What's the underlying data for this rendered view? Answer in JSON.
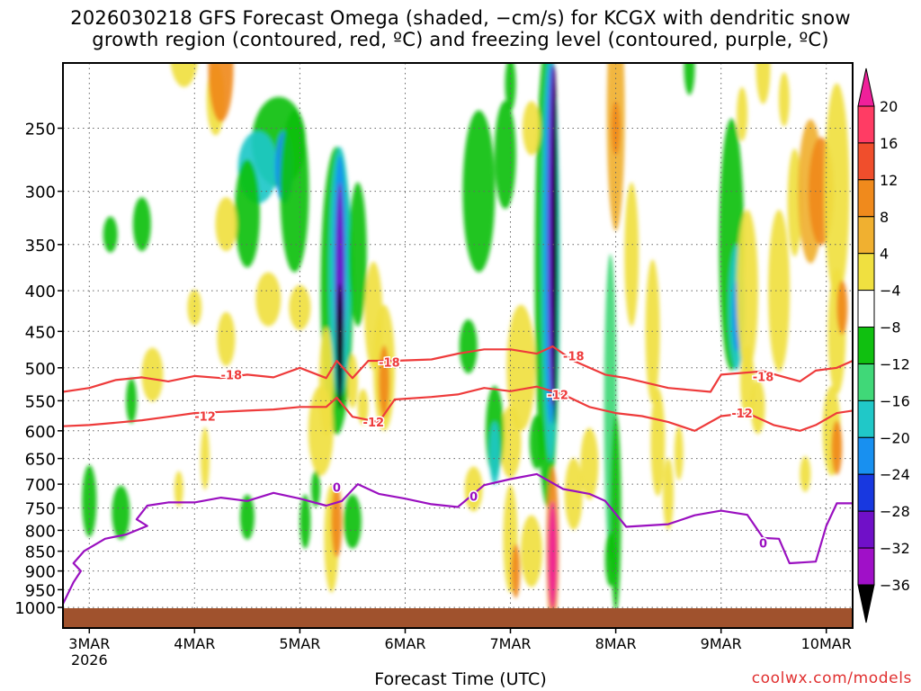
{
  "title": {
    "line1": "2026030218 GFS Forecast Omega (shaded, −cm/s) for KCGX with dendritic snow",
    "line2": "growth region (contoured, red, ºC) and freezing level (contoured, purple, ºC)"
  },
  "credit": "coolwx.com/models",
  "chart_data": {
    "type": "heatmap",
    "title": "2026030218 GFS Forecast Omega (shaded, −cm/s) for KCGX with dendritic snow growth region (contoured, red, ºC) and freezing level (contoured, purple, ºC)",
    "xlabel": "Forecast Time (UTC)",
    "ylabel": "",
    "x_range_days": [
      2.75,
      10.25
    ],
    "y_range_hPa": [
      200,
      1020
    ],
    "y_ticks": [
      250,
      300,
      350,
      400,
      450,
      500,
      550,
      600,
      650,
      700,
      750,
      800,
      850,
      900,
      950,
      1000
    ],
    "x_ticks": [
      {
        "day": 3,
        "label": "3MAR",
        "sub": "2026"
      },
      {
        "day": 4,
        "label": "4MAR"
      },
      {
        "day": 5,
        "label": "5MAR"
      },
      {
        "day": 6,
        "label": "6MAR"
      },
      {
        "day": 7,
        "label": "7MAR"
      },
      {
        "day": 8,
        "label": "8MAR"
      },
      {
        "day": 9,
        "label": "9MAR"
      },
      {
        "day": 10,
        "label": "10MAR"
      }
    ],
    "colorbar": {
      "labels": [
        "20",
        "16",
        "12",
        "8",
        "4",
        "−4",
        "−8",
        "−12",
        "−16",
        "−20",
        "−24",
        "−28",
        "−32",
        "−36"
      ],
      "colors": [
        "#ff3c64",
        "#f04e2c",
        "#f08a1c",
        "#f0b030",
        "#f0e040",
        "#ffffff",
        "#10c010",
        "#40d878",
        "#20c8c8",
        "#1890f0",
        "#1838e0",
        "#7010c8",
        "#a010c8",
        "#a0a0a0"
      ],
      "top_arrow_color": "#f0209a",
      "bottom_arrow_color": "#000000"
    },
    "contours": [
      {
        "name": "dgz-minus-18",
        "label": "-18",
        "color": "#ee3b3b",
        "points": [
          [
            2.75,
            536
          ],
          [
            3.0,
            530
          ],
          [
            3.25,
            518
          ],
          [
            3.5,
            514
          ],
          [
            3.75,
            520
          ],
          [
            4.0,
            512
          ],
          [
            4.25,
            515
          ],
          [
            4.5,
            510
          ],
          [
            4.75,
            514
          ],
          [
            5.0,
            500
          ],
          [
            5.25,
            515
          ],
          [
            5.35,
            490
          ],
          [
            5.5,
            515
          ],
          [
            5.65,
            490
          ],
          [
            5.9,
            490
          ],
          [
            6.25,
            488
          ],
          [
            6.5,
            480
          ],
          [
            6.75,
            474
          ],
          [
            7.0,
            474
          ],
          [
            7.25,
            480
          ],
          [
            7.4,
            470
          ],
          [
            7.6,
            490
          ],
          [
            7.9,
            510
          ],
          [
            8.1,
            515
          ],
          [
            8.5,
            530
          ],
          [
            8.9,
            536
          ],
          [
            9.0,
            510
          ],
          [
            9.4,
            505
          ],
          [
            9.75,
            520
          ],
          [
            9.9,
            504
          ],
          [
            10.1,
            500
          ],
          [
            10.25,
            490
          ]
        ],
        "labels_at": [
          [
            4.35,
            510
          ],
          [
            5.85,
            492
          ],
          [
            7.6,
            483
          ],
          [
            9.4,
            513
          ]
        ]
      },
      {
        "name": "dgz-minus-12",
        "label": "-12",
        "color": "#ee3b3b",
        "points": [
          [
            2.75,
            592
          ],
          [
            3.0,
            590
          ],
          [
            3.25,
            586
          ],
          [
            3.5,
            582
          ],
          [
            3.75,
            576
          ],
          [
            4.0,
            570
          ],
          [
            4.25,
            568
          ],
          [
            4.5,
            566
          ],
          [
            4.75,
            564
          ],
          [
            5.0,
            560
          ],
          [
            5.25,
            560
          ],
          [
            5.35,
            545
          ],
          [
            5.5,
            576
          ],
          [
            5.75,
            585
          ],
          [
            5.9,
            548
          ],
          [
            6.25,
            544
          ],
          [
            6.5,
            540
          ],
          [
            6.75,
            530
          ],
          [
            7.0,
            535
          ],
          [
            7.25,
            528
          ],
          [
            7.5,
            540
          ],
          [
            7.75,
            560
          ],
          [
            8.0,
            570
          ],
          [
            8.25,
            575
          ],
          [
            8.5,
            585
          ],
          [
            8.75,
            600
          ],
          [
            9.0,
            575
          ],
          [
            9.25,
            570
          ],
          [
            9.5,
            590
          ],
          [
            9.75,
            600
          ],
          [
            9.9,
            590
          ],
          [
            10.1,
            570
          ],
          [
            10.25,
            566
          ]
        ],
        "labels_at": [
          [
            4.1,
            575
          ],
          [
            5.7,
            585
          ],
          [
            7.45,
            540
          ],
          [
            9.2,
            570
          ]
        ]
      },
      {
        "name": "freezing-level-0",
        "label": "0",
        "color": "#9a10c0",
        "points": [
          [
            2.75,
            990
          ],
          [
            2.85,
            930
          ],
          [
            2.92,
            900
          ],
          [
            2.85,
            880
          ],
          [
            2.95,
            850
          ],
          [
            3.15,
            820
          ],
          [
            3.35,
            810
          ],
          [
            3.55,
            790
          ],
          [
            3.45,
            775
          ],
          [
            3.55,
            745
          ],
          [
            3.75,
            738
          ],
          [
            4.0,
            738
          ],
          [
            4.25,
            728
          ],
          [
            4.5,
            735
          ],
          [
            4.75,
            718
          ],
          [
            5.0,
            730
          ],
          [
            5.25,
            745
          ],
          [
            5.4,
            735
          ],
          [
            5.55,
            700
          ],
          [
            5.75,
            720
          ],
          [
            6.0,
            730
          ],
          [
            6.25,
            742
          ],
          [
            6.5,
            748
          ],
          [
            6.75,
            702
          ],
          [
            7.0,
            690
          ],
          [
            7.25,
            680
          ],
          [
            7.5,
            710
          ],
          [
            7.75,
            720
          ],
          [
            7.9,
            735
          ],
          [
            8.1,
            792
          ],
          [
            8.5,
            786
          ],
          [
            8.75,
            766
          ],
          [
            9.0,
            756
          ],
          [
            9.25,
            765
          ],
          [
            9.4,
            818
          ],
          [
            9.55,
            820
          ],
          [
            9.65,
            880
          ],
          [
            9.9,
            876
          ],
          [
            10.0,
            790
          ],
          [
            10.1,
            740
          ],
          [
            10.25,
            740
          ]
        ],
        "labels_at": [
          [
            5.35,
            706
          ],
          [
            6.65,
            725
          ],
          [
            9.4,
            830
          ]
        ]
      }
    ]
  }
}
